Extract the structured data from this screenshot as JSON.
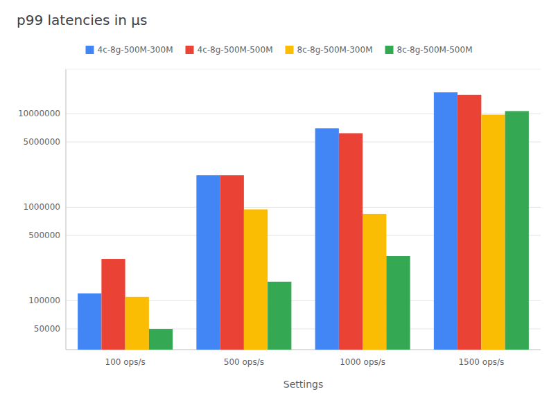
{
  "chart_data": {
    "type": "bar",
    "title": "p99 latencies in μs",
    "xlabel": "Settings",
    "categories": [
      "100 ops/s",
      "500 ops/s",
      "1000 ops/s",
      "1500 ops/s"
    ],
    "series": [
      {
        "name": "4c-8g-500M-300M",
        "color": "#4285F4",
        "values": [
          120000,
          2200000,
          7000000,
          17000000
        ]
      },
      {
        "name": "4c-8g-500M-500M",
        "color": "#EA4335",
        "values": [
          280000,
          2200000,
          6200000,
          16000000
        ]
      },
      {
        "name": "8c-8g-500M-300M",
        "color": "#FBBC04",
        "values": [
          110000,
          950000,
          850000,
          9800000
        ]
      },
      {
        "name": "8c-8g-500M-500M",
        "color": "#34A853",
        "values": [
          50000,
          160000,
          300000,
          10700000
        ]
      }
    ],
    "log": "y",
    "ylim": [
      30000,
      30000000
    ],
    "yticks": [
      50000,
      100000,
      500000,
      1000000,
      5000000,
      10000000
    ],
    "grid": true,
    "legend": "top"
  }
}
